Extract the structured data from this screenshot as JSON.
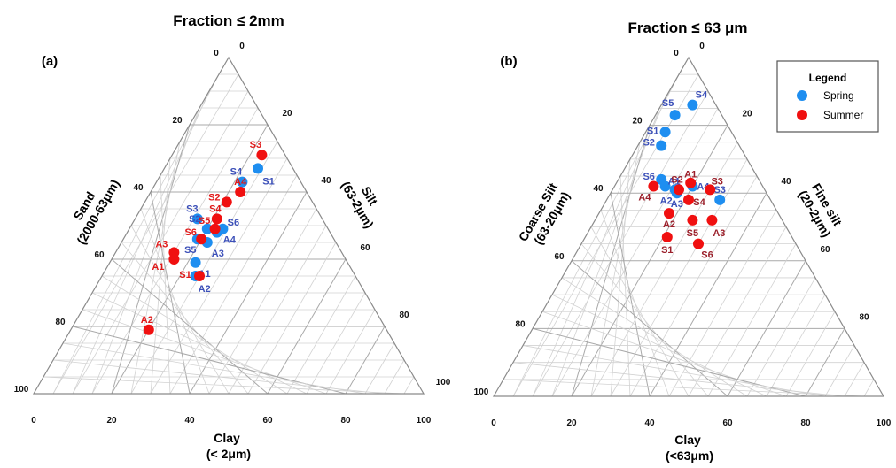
{
  "figure": {
    "legend": {
      "title": "Legend",
      "entries": [
        {
          "label": "Spring",
          "color": "#1e8ef0"
        },
        {
          "label": "Summer",
          "color": "#f01010"
        }
      ]
    }
  },
  "chart_data": [
    {
      "type": "scatter",
      "subtype": "ternary",
      "panel": "(a)",
      "title": "Fraction ≤ 2mm",
      "axes": {
        "left": [
          "Sand",
          "(2000-63μm)"
        ],
        "right": [
          "Silt",
          "(63-2μm)"
        ],
        "bottom": [
          "Clay",
          "(< 2μm)"
        ]
      },
      "ticks": {
        "bottom": [
          "0",
          "20",
          "40",
          "60",
          "80",
          "100"
        ],
        "left": [
          "100",
          "80",
          "60",
          "40",
          "20",
          "0"
        ],
        "right": [
          "0",
          "20",
          "40",
          "60",
          "80",
          "100"
        ]
      },
      "ylim": [
        0,
        100
      ],
      "grid": true,
      "series": [
        {
          "name": "Spring",
          "color": "#1e8ef0",
          "label_color": "#3b4fb8",
          "points": [
            {
              "label": "S4",
              "clay": 22,
              "silt": 63
            },
            {
              "label": "S1",
              "clay": 24,
              "silt": 67
            },
            {
              "label": "S3",
              "clay": 16,
              "silt": 52
            },
            {
              "label": "S2",
              "clay": 20,
              "silt": 49
            },
            {
              "label": "S6",
              "clay": 24,
              "silt": 49
            },
            {
              "label": "A4",
              "clay": 23,
              "silt": 48
            },
            {
              "label": "A3",
              "clay": 22,
              "silt": 45
            },
            {
              "label": "S5",
              "clay": 19,
              "silt": 46
            },
            {
              "label": "A1",
              "clay": 22,
              "silt": 39
            },
            {
              "label": "A2",
              "clay": 24,
              "silt": 35
            }
          ]
        },
        {
          "name": "Summer",
          "color": "#f01010",
          "label_color": "#e01818",
          "points": [
            {
              "label": "S3",
              "clay": 23,
              "silt": 71
            },
            {
              "label": "A4",
              "clay": 23,
              "silt": 60
            },
            {
              "label": "S2",
              "clay": 21,
              "silt": 57
            },
            {
              "label": "S4",
              "clay": 21,
              "silt": 52
            },
            {
              "label": "S5",
              "clay": 22,
              "silt": 49
            },
            {
              "label": "S6",
              "clay": 20,
              "silt": 46
            },
            {
              "label": "A3",
              "clay": 15,
              "silt": 42
            },
            {
              "label": "A1",
              "clay": 16,
              "silt": 40
            },
            {
              "label": "S1",
              "clay": 25,
              "silt": 35
            },
            {
              "label": "A2",
              "clay": 20,
              "silt": 19
            }
          ]
        }
      ]
    },
    {
      "type": "scatter",
      "subtype": "ternary",
      "panel": "(b)",
      "title": "Fraction ≤ 63 μm",
      "axes": {
        "left": [
          "Coarse Silt",
          "(63-20μm)"
        ],
        "right": [
          "Fine silt",
          "(20-2μm)"
        ],
        "bottom": [
          "Clay",
          "(<63μm)"
        ]
      },
      "ticks": {
        "bottom": [
          "0",
          "20",
          "40",
          "60",
          "80",
          "100"
        ],
        "left": [
          "100",
          "80",
          "60",
          "40",
          "20",
          "0"
        ],
        "right": [
          "0",
          "20",
          "40",
          "60",
          "80",
          "100"
        ]
      },
      "ylim": [
        0,
        100
      ],
      "grid": true,
      "series": [
        {
          "name": "Spring",
          "color": "#1e8ef0",
          "label_color": "#3b4fb8",
          "points": [
            {
              "label": "S4",
              "clay": 8,
              "silt": 86
            },
            {
              "label": "S5",
              "clay": 5,
              "silt": 83
            },
            {
              "label": "S1",
              "clay": 5,
              "silt": 78
            },
            {
              "label": "S2",
              "clay": 6,
              "silt": 74
            },
            {
              "label": "S6",
              "clay": 11,
              "silt": 64
            },
            {
              "label": "A1",
              "clay": 13,
              "silt": 62
            },
            {
              "label": "A2",
              "clay": 16,
              "silt": 61
            },
            {
              "label": "A4",
              "clay": 20,
              "silt": 62
            },
            {
              "label": "A3",
              "clay": 17,
              "silt": 60
            },
            {
              "label": "S3",
              "clay": 29,
              "silt": 58
            }
          ]
        },
        {
          "name": "Summer",
          "color": "#f01010",
          "label_color": "#9b1f2a",
          "points": [
            {
              "label": "A1",
              "clay": 19,
              "silt": 63
            },
            {
              "label": "S2",
              "clay": 17,
              "silt": 61
            },
            {
              "label": "A4",
              "clay": 10,
              "silt": 62
            },
            {
              "label": "S3",
              "clay": 25,
              "silt": 61
            },
            {
              "label": "S4",
              "clay": 21,
              "silt": 58
            },
            {
              "label": "A2",
              "clay": 18,
              "silt": 54
            },
            {
              "label": "S5",
              "clay": 25,
              "silt": 52
            },
            {
              "label": "A3",
              "clay": 30,
              "silt": 52
            },
            {
              "label": "S1",
              "clay": 21,
              "silt": 47
            },
            {
              "label": "S6",
              "clay": 30,
              "silt": 45
            }
          ]
        }
      ]
    }
  ]
}
